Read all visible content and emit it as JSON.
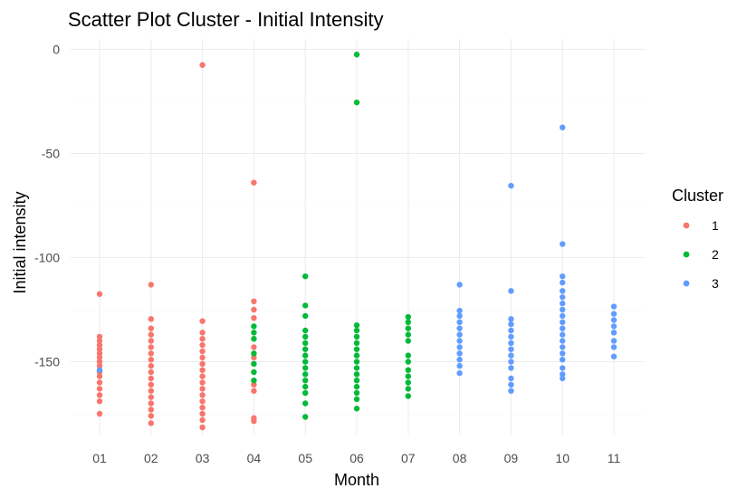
{
  "chart_data": {
    "type": "scatter",
    "title": "Scatter Plot Cluster - Initial Intensity",
    "xlabel": "Month",
    "ylabel": "Initial intensity",
    "categories": [
      "01",
      "02",
      "03",
      "04",
      "05",
      "06",
      "07",
      "08",
      "09",
      "10",
      "11"
    ],
    "y_ticks": [
      0,
      -50,
      -100,
      -150
    ],
    "ylim": [
      -185,
      5
    ],
    "grid": true,
    "legend": {
      "title": "Cluster",
      "placement": "right"
    },
    "series": [
      {
        "name": "1",
        "color": "#f8766d",
        "points": [
          [
            "01",
            -117.5
          ],
          [
            "01",
            -138
          ],
          [
            "01",
            -140
          ],
          [
            "01",
            -142
          ],
          [
            "01",
            -144
          ],
          [
            "01",
            -146
          ],
          [
            "01",
            -148
          ],
          [
            "01",
            -150
          ],
          [
            "01",
            -152
          ],
          [
            "01",
            -155
          ],
          [
            "01",
            -157
          ],
          [
            "01",
            -160
          ],
          [
            "01",
            -163
          ],
          [
            "01",
            -166
          ],
          [
            "01",
            -169
          ],
          [
            "01",
            -175
          ],
          [
            "02",
            -113
          ],
          [
            "02",
            -129.5
          ],
          [
            "02",
            -134
          ],
          [
            "02",
            -137
          ],
          [
            "02",
            -140
          ],
          [
            "02",
            -143
          ],
          [
            "02",
            -146
          ],
          [
            "02",
            -149
          ],
          [
            "02",
            -152
          ],
          [
            "02",
            -155
          ],
          [
            "02",
            -158
          ],
          [
            "02",
            -161
          ],
          [
            "02",
            -164
          ],
          [
            "02",
            -167
          ],
          [
            "02",
            -170
          ],
          [
            "02",
            -173
          ],
          [
            "02",
            -176
          ],
          [
            "02",
            -179.5
          ],
          [
            "03",
            -7.5
          ],
          [
            "03",
            -130.5
          ],
          [
            "03",
            -136
          ],
          [
            "03",
            -139
          ],
          [
            "03",
            -142
          ],
          [
            "03",
            -145
          ],
          [
            "03",
            -148
          ],
          [
            "03",
            -151
          ],
          [
            "03",
            -154
          ],
          [
            "03",
            -157
          ],
          [
            "03",
            -160
          ],
          [
            "03",
            -163
          ],
          [
            "03",
            -166
          ],
          [
            "03",
            -169
          ],
          [
            "03",
            -172
          ],
          [
            "03",
            -175
          ],
          [
            "03",
            -178
          ],
          [
            "03",
            -181.5
          ],
          [
            "04",
            -64
          ],
          [
            "04",
            -121
          ],
          [
            "04",
            -125
          ],
          [
            "04",
            -129
          ],
          [
            "04",
            -143
          ],
          [
            "04",
            -148
          ],
          [
            "04",
            -161
          ],
          [
            "04",
            -164
          ],
          [
            "04",
            -177
          ],
          [
            "04",
            -178.5
          ]
        ]
      },
      {
        "name": "2",
        "color": "#00ba38",
        "points": [
          [
            "04",
            -133
          ],
          [
            "04",
            -136
          ],
          [
            "04",
            -139
          ],
          [
            "04",
            -146
          ],
          [
            "04",
            -151
          ],
          [
            "04",
            -155
          ],
          [
            "04",
            -159
          ],
          [
            "05",
            -109
          ],
          [
            "05",
            -123
          ],
          [
            "05",
            -128
          ],
          [
            "05",
            -135
          ],
          [
            "05",
            -138
          ],
          [
            "05",
            -141
          ],
          [
            "05",
            -144
          ],
          [
            "05",
            -147
          ],
          [
            "05",
            -150
          ],
          [
            "05",
            -153
          ],
          [
            "05",
            -156
          ],
          [
            "05",
            -159
          ],
          [
            "05",
            -162
          ],
          [
            "05",
            -165
          ],
          [
            "05",
            -170
          ],
          [
            "05",
            -176.5
          ],
          [
            "06",
            -2.5
          ],
          [
            "06",
            -25.5
          ],
          [
            "06",
            -132.5
          ],
          [
            "06",
            -135
          ],
          [
            "06",
            -138
          ],
          [
            "06",
            -141
          ],
          [
            "06",
            -144
          ],
          [
            "06",
            -147
          ],
          [
            "06",
            -150
          ],
          [
            "06",
            -153
          ],
          [
            "06",
            -156
          ],
          [
            "06",
            -159
          ],
          [
            "06",
            -162
          ],
          [
            "06",
            -165
          ],
          [
            "06",
            -168
          ],
          [
            "06",
            -172.5
          ],
          [
            "07",
            -128.5
          ],
          [
            "07",
            -131
          ],
          [
            "07",
            -134
          ],
          [
            "07",
            -137
          ],
          [
            "07",
            -140
          ],
          [
            "07",
            -147
          ],
          [
            "07",
            -150
          ],
          [
            "07",
            -154
          ],
          [
            "07",
            -157
          ],
          [
            "07",
            -160
          ],
          [
            "07",
            -163
          ],
          [
            "07",
            -166.5
          ]
        ]
      },
      {
        "name": "3",
        "color": "#619cff",
        "points": [
          [
            "01",
            -154
          ],
          [
            "08",
            -113
          ],
          [
            "08",
            -125.5
          ],
          [
            "08",
            -128
          ],
          [
            "08",
            -131
          ],
          [
            "08",
            -134
          ],
          [
            "08",
            -137
          ],
          [
            "08",
            -140
          ],
          [
            "08",
            -143
          ],
          [
            "08",
            -146
          ],
          [
            "08",
            -149
          ],
          [
            "08",
            -152
          ],
          [
            "08",
            -155.5
          ],
          [
            "09",
            -65.5
          ],
          [
            "09",
            -116
          ],
          [
            "09",
            -129.5
          ],
          [
            "09",
            -132
          ],
          [
            "09",
            -135
          ],
          [
            "09",
            -138
          ],
          [
            "09",
            -141
          ],
          [
            "09",
            -144
          ],
          [
            "09",
            -147
          ],
          [
            "09",
            -150
          ],
          [
            "09",
            -153
          ],
          [
            "09",
            -158
          ],
          [
            "09",
            -161
          ],
          [
            "09",
            -164
          ],
          [
            "10",
            -37.5
          ],
          [
            "10",
            -93.5
          ],
          [
            "10",
            -109
          ],
          [
            "10",
            -112
          ],
          [
            "10",
            -116
          ],
          [
            "10",
            -119
          ],
          [
            "10",
            -122
          ],
          [
            "10",
            -125
          ],
          [
            "10",
            -128
          ],
          [
            "10",
            -131
          ],
          [
            "10",
            -134
          ],
          [
            "10",
            -137
          ],
          [
            "10",
            -140
          ],
          [
            "10",
            -143
          ],
          [
            "10",
            -146
          ],
          [
            "10",
            -149
          ],
          [
            "10",
            -153
          ],
          [
            "10",
            -156
          ],
          [
            "10",
            -158
          ],
          [
            "11",
            -123.5
          ],
          [
            "11",
            -127
          ],
          [
            "11",
            -130
          ],
          [
            "11",
            -133
          ],
          [
            "11",
            -136
          ],
          [
            "11",
            -140
          ],
          [
            "11",
            -143
          ],
          [
            "11",
            -147.5
          ]
        ]
      }
    ]
  }
}
